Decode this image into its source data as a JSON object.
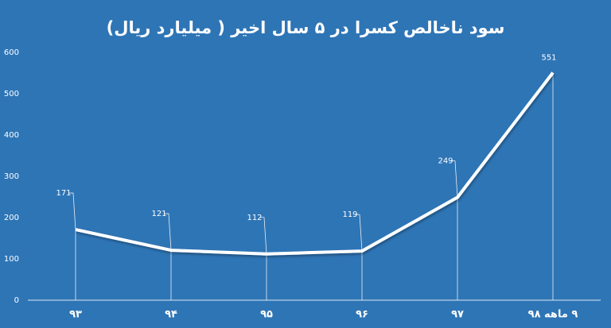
{
  "chart_data": {
    "type": "line",
    "title": "سود ناخالص کسرا در ۵ سال اخیر ( میلیارد ریال)",
    "categories": [
      "۹۳",
      "۹۴",
      "۹۵",
      "۹۶",
      "۹۷",
      "۹ ماهه ۹۸"
    ],
    "values": [
      171,
      121,
      112,
      119,
      249,
      551
    ],
    "color": "#ffffff",
    "ylim": [
      0,
      600
    ],
    "yticks": [
      0,
      100,
      200,
      300,
      400,
      500,
      600
    ],
    "grid": false,
    "data_labels": true
  }
}
